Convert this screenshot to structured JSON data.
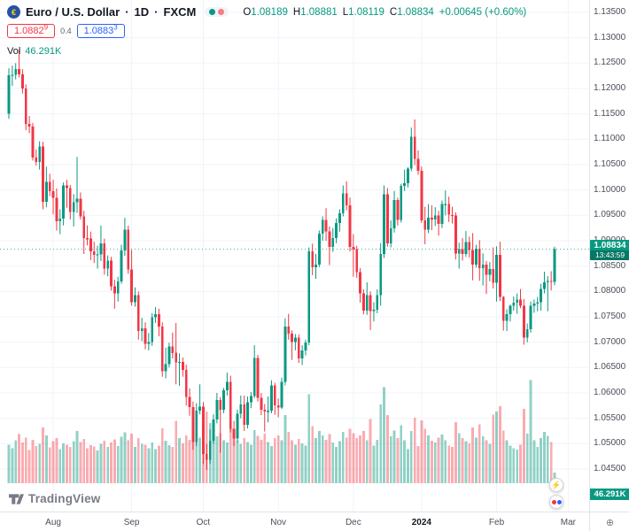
{
  "header": {
    "symbol_title": "Euro / U.S. Dollar",
    "dot": "·",
    "timeframe": "1D",
    "exchange": "FXCM",
    "ohlc": {
      "o_label": "O",
      "o": "1.08189",
      "h_label": "H",
      "h": "1.08881",
      "l_label": "L",
      "l": "1.08119",
      "c_label": "C",
      "c": "1.08834",
      "change": "+0.00645 (+0.60%)"
    },
    "bid": {
      "main": "1.0882",
      "sup": "9"
    },
    "spread": "0.4",
    "ask": {
      "main": "1.0883",
      "sup": "3"
    },
    "vol_label": "Vol",
    "vol_value": "46.291K"
  },
  "price_badge": {
    "price": "1.08834",
    "countdown": "13:43:59"
  },
  "volume_badge": "46.291K",
  "logo": {
    "text": "TradingView"
  },
  "icons": {
    "quick_trade": "⚡",
    "corner": "⊕"
  },
  "colors": {
    "up": "#089981",
    "down": "#f23645",
    "vol_up": "rgba(8,153,129,0.45)",
    "vol_down": "rgba(242,54,69,0.42)",
    "grid": "#f0f3fa",
    "price_line": "#089981",
    "accent_blue": "#2962ff"
  },
  "price_scale": {
    "labels": [
      "1.13500",
      "1.13000",
      "1.12500",
      "1.12000",
      "1.11500",
      "1.11000",
      "1.10500",
      "1.10000",
      "1.09500",
      "1.09000",
      "1.08500",
      "1.08000",
      "1.07500",
      "1.07000",
      "1.06500",
      "1.06000",
      "1.05500",
      "1.05000",
      "1.04500"
    ]
  },
  "time_scale": {
    "ticks": [
      {
        "label": "Aug",
        "i": 13
      },
      {
        "label": "Sep",
        "i": 36
      },
      {
        "label": "Oct",
        "i": 57
      },
      {
        "label": "Nov",
        "i": 79
      },
      {
        "label": "Dec",
        "i": 101
      },
      {
        "label": "2024",
        "i": 121,
        "year": true
      },
      {
        "label": "Feb",
        "i": 143
      },
      {
        "label": "Mar",
        "i": 164
      }
    ]
  },
  "chart_data": {
    "type": "candlestick+volume",
    "symbol": "EURUSD",
    "timeframe": "1D",
    "title": "Euro / U.S. Dollar · 1D · FXCM",
    "y_axis": {
      "min": 1.045,
      "max": 1.135,
      "tick": 0.005
    },
    "price_line": 1.08834,
    "last_volume_k": 46.291,
    "ohlc": [
      [
        1.115,
        1.124,
        1.114,
        1.1226
      ],
      [
        1.1226,
        1.1245,
        1.1205,
        1.1227
      ],
      [
        1.1227,
        1.125,
        1.1218,
        1.1238
      ],
      [
        1.1238,
        1.1276,
        1.1222,
        1.1228
      ],
      [
        1.1228,
        1.1238,
        1.119,
        1.12
      ],
      [
        1.12,
        1.1208,
        1.1118,
        1.113
      ],
      [
        1.113,
        1.1146,
        1.1112,
        1.1125
      ],
      [
        1.1125,
        1.1132,
        1.1058,
        1.1064
      ],
      [
        1.1064,
        1.108,
        1.1048,
        1.1055
      ],
      [
        1.1055,
        1.1096,
        1.104,
        1.1086
      ],
      [
        1.1086,
        1.1095,
        1.0962,
        1.0977
      ],
      [
        1.0977,
        1.1046,
        1.0966,
        1.1016
      ],
      [
        1.1016,
        1.1032,
        1.0988,
        1.0998
      ],
      [
        1.0998,
        1.102,
        1.0952,
        1.0985
      ],
      [
        1.0985,
        1.1003,
        1.092,
        1.0938
      ],
      [
        1.0938,
        1.0962,
        1.0913,
        1.0944
      ],
      [
        1.0944,
        1.1015,
        1.093,
        1.1009
      ],
      [
        1.1009,
        1.102,
        1.0965,
        1.1004
      ],
      [
        1.1004,
        1.101,
        1.0942,
        1.0957
      ],
      [
        1.0957,
        1.0992,
        1.0928,
        1.0976
      ],
      [
        1.0976,
        1.1065,
        1.0955,
        1.0983
      ],
      [
        1.0983,
        1.0995,
        1.0942,
        1.0948
      ],
      [
        1.0948,
        1.0959,
        1.0874,
        1.0905
      ],
      [
        1.0905,
        1.093,
        1.0891,
        1.0904
      ],
      [
        1.0904,
        1.0918,
        1.0862,
        1.0879
      ],
      [
        1.0879,
        1.0898,
        1.0856,
        1.0872
      ],
      [
        1.0872,
        1.089,
        1.0845,
        1.0873
      ],
      [
        1.0873,
        1.093,
        1.086,
        1.0895
      ],
      [
        1.0895,
        1.0904,
        1.0833,
        1.0845
      ],
      [
        1.0845,
        1.0871,
        1.083,
        1.0861
      ],
      [
        1.0861,
        1.0868,
        1.0802,
        1.081
      ],
      [
        1.081,
        1.0823,
        1.0766,
        1.0796
      ],
      [
        1.0796,
        1.0829,
        1.078,
        1.082
      ],
      [
        1.082,
        1.0892,
        1.0815,
        1.0881
      ],
      [
        1.0881,
        1.0945,
        1.087,
        1.0922
      ],
      [
        1.0922,
        1.093,
        1.0835,
        1.0843
      ],
      [
        1.0843,
        1.0882,
        1.0772,
        1.0779
      ],
      [
        1.0779,
        1.0808,
        1.077,
        1.0793
      ],
      [
        1.0793,
        1.08,
        1.0705,
        1.0722
      ],
      [
        1.0722,
        1.0748,
        1.0702,
        1.0727
      ],
      [
        1.0727,
        1.0739,
        1.0686,
        1.0697
      ],
      [
        1.0697,
        1.0718,
        1.0684,
        1.07
      ],
      [
        1.07,
        1.0757,
        1.0693,
        1.0749
      ],
      [
        1.0749,
        1.0769,
        1.0738,
        1.0755
      ],
      [
        1.0755,
        1.0766,
        1.0712,
        1.0731
      ],
      [
        1.0731,
        1.0739,
        1.0632,
        1.0643
      ],
      [
        1.0643,
        1.0689,
        1.0629,
        1.0657
      ],
      [
        1.0657,
        1.0699,
        1.065,
        1.0692
      ],
      [
        1.0692,
        1.0719,
        1.0668,
        1.0679
      ],
      [
        1.0679,
        1.0738,
        1.0617,
        1.066
      ],
      [
        1.066,
        1.0678,
        1.0614,
        1.0661
      ],
      [
        1.0661,
        1.067,
        1.0632,
        1.0645
      ],
      [
        1.0645,
        1.0656,
        1.0575,
        1.0592
      ],
      [
        1.0592,
        1.0609,
        1.0555,
        1.0572
      ],
      [
        1.0572,
        1.0583,
        1.0488,
        1.0503
      ],
      [
        1.0503,
        1.058,
        1.0495,
        1.0565
      ],
      [
        1.0565,
        1.0617,
        1.0558,
        1.0573
      ],
      [
        1.0573,
        1.0582,
        1.046,
        1.048
      ],
      [
        1.048,
        1.0499,
        1.0448,
        1.0468
      ],
      [
        1.0468,
        1.0528,
        1.046,
        1.0506
      ],
      [
        1.0506,
        1.0558,
        1.05,
        1.0548
      ],
      [
        1.0548,
        1.06,
        1.054,
        1.0586
      ],
      [
        1.0586,
        1.0592,
        1.0482,
        1.0567
      ],
      [
        1.0567,
        1.061,
        1.056,
        1.0605
      ],
      [
        1.0605,
        1.064,
        1.0595,
        1.0622
      ],
      [
        1.0622,
        1.0634,
        1.0522,
        1.0529
      ],
      [
        1.0529,
        1.0545,
        1.0495,
        1.051
      ],
      [
        1.051,
        1.0567,
        1.0503,
        1.0559
      ],
      [
        1.0559,
        1.0595,
        1.055,
        1.0577
      ],
      [
        1.0577,
        1.0595,
        1.0525,
        1.0537
      ],
      [
        1.0537,
        1.0593,
        1.053,
        1.0582
      ],
      [
        1.0582,
        1.0602,
        1.057,
        1.0594
      ],
      [
        1.0594,
        1.0694,
        1.059,
        1.0669
      ],
      [
        1.0669,
        1.0675,
        1.0583,
        1.059
      ],
      [
        1.059,
        1.06,
        1.0556,
        1.0567
      ],
      [
        1.0567,
        1.0578,
        1.0524,
        1.0563
      ],
      [
        1.0563,
        1.0593,
        1.0542,
        1.0565
      ],
      [
        1.0565,
        1.0625,
        1.056,
        1.0615
      ],
      [
        1.0615,
        1.062,
        1.0557,
        1.0576
      ],
      [
        1.0576,
        1.0589,
        1.0552,
        1.0571
      ],
      [
        1.0571,
        1.063,
        1.0568,
        1.0622
      ],
      [
        1.0622,
        1.0747,
        1.0615,
        1.0731
      ],
      [
        1.0731,
        1.0756,
        1.0705,
        1.0717
      ],
      [
        1.0717,
        1.0723,
        1.0665,
        1.07
      ],
      [
        1.07,
        1.0716,
        1.0684,
        1.0709
      ],
      [
        1.0709,
        1.0715,
        1.0659,
        1.0668
      ],
      [
        1.0668,
        1.0694,
        1.0655,
        1.0684
      ],
      [
        1.0684,
        1.0705,
        1.0674,
        1.0699
      ],
      [
        1.0699,
        1.0887,
        1.0694,
        1.0879
      ],
      [
        1.0879,
        1.0894,
        1.0832,
        1.0848
      ],
      [
        1.0848,
        1.0874,
        1.0825,
        1.0853
      ],
      [
        1.0853,
        1.092,
        1.0848,
        1.0914
      ],
      [
        1.0914,
        1.0948,
        1.09,
        1.0941
      ],
      [
        1.0941,
        1.0964,
        1.09,
        1.0918
      ],
      [
        1.0918,
        1.0928,
        1.0852,
        1.0888
      ],
      [
        1.0888,
        1.0925,
        1.0878,
        1.0905
      ],
      [
        1.0905,
        1.0944,
        1.0895,
        1.0935
      ],
      [
        1.0935,
        1.0962,
        1.0918,
        1.0954
      ],
      [
        1.0954,
        1.1009,
        1.0948,
        1.0993
      ],
      [
        1.0993,
        1.1017,
        1.096,
        1.097
      ],
      [
        1.097,
        1.0985,
        1.0879,
        1.0888
      ],
      [
        1.0888,
        1.0913,
        1.0829,
        1.0883
      ],
      [
        1.0883,
        1.089,
        1.0827,
        1.0838
      ],
      [
        1.0838,
        1.0846,
        1.0778,
        1.0796
      ],
      [
        1.0796,
        1.0804,
        1.0755,
        1.0762
      ],
      [
        1.0762,
        1.0818,
        1.0754,
        1.0793
      ],
      [
        1.0793,
        1.08,
        1.0724,
        1.0761
      ],
      [
        1.0761,
        1.0779,
        1.0741,
        1.0764
      ],
      [
        1.0764,
        1.0804,
        1.0757,
        1.0793
      ],
      [
        1.0793,
        1.0895,
        1.0772,
        1.0874
      ],
      [
        1.0874,
        1.1009,
        1.0866,
        1.0992
      ],
      [
        1.0992,
        1.1004,
        1.0888,
        1.0895
      ],
      [
        1.0895,
        1.094,
        1.0887,
        1.0924
      ],
      [
        1.0924,
        1.0998,
        1.0916,
        1.098
      ],
      [
        1.098,
        1.0985,
        1.093,
        1.0941
      ],
      [
        1.0941,
        1.1012,
        1.0936,
        1.1008
      ],
      [
        1.1008,
        1.104,
        1.0998,
        1.1013
      ],
      [
        1.1013,
        1.1045,
        1.1005,
        1.1042
      ],
      [
        1.1042,
        1.1123,
        1.1037,
        1.1105
      ],
      [
        1.1105,
        1.1139,
        1.1049,
        1.1061
      ],
      [
        1.1061,
        1.1078,
        1.103,
        1.1038
      ],
      [
        1.1038,
        1.1046,
        1.0935,
        1.094
      ],
      [
        1.094,
        1.0967,
        1.0893,
        1.0922
      ],
      [
        1.0922,
        1.0972,
        1.0915,
        1.0945
      ],
      [
        1.0945,
        1.097,
        1.0921,
        1.0942
      ],
      [
        1.0942,
        1.0966,
        1.0929,
        1.095
      ],
      [
        1.095,
        1.0959,
        1.091,
        1.0933
      ],
      [
        1.0933,
        1.0979,
        1.0925,
        1.0972
      ],
      [
        1.0972,
        1.0999,
        1.095,
        1.0972
      ],
      [
        1.0972,
        1.0987,
        1.0937,
        1.0951
      ],
      [
        1.0951,
        1.0967,
        1.0934,
        1.095
      ],
      [
        1.095,
        1.0956,
        1.0863,
        1.0875
      ],
      [
        1.0875,
        1.0896,
        1.0845,
        1.0883
      ],
      [
        1.0883,
        1.0905,
        1.0861,
        1.0874
      ],
      [
        1.0874,
        1.0919,
        1.0868,
        1.0897
      ],
      [
        1.0897,
        1.0908,
        1.0867,
        1.0882
      ],
      [
        1.0882,
        1.0915,
        1.0822,
        1.0853
      ],
      [
        1.0853,
        1.0892,
        1.0847,
        1.0884
      ],
      [
        1.0884,
        1.0901,
        1.0821,
        1.0846
      ],
      [
        1.0846,
        1.0875,
        1.0812,
        1.0853
      ],
      [
        1.0853,
        1.086,
        1.0795,
        1.0833
      ],
      [
        1.0833,
        1.0858,
        1.082,
        1.0844
      ],
      [
        1.0844,
        1.0887,
        1.0806,
        1.0817
      ],
      [
        1.0817,
        1.0889,
        1.078,
        1.0872
      ],
      [
        1.0872,
        1.0898,
        1.0781,
        1.0789
      ],
      [
        1.0789,
        1.0791,
        1.0723,
        1.0742
      ],
      [
        1.0742,
        1.0765,
        1.0722,
        1.0755
      ],
      [
        1.0755,
        1.0774,
        1.0741,
        1.0772
      ],
      [
        1.0772,
        1.079,
        1.0762,
        1.0778
      ],
      [
        1.0778,
        1.0796,
        1.0756,
        1.0784
      ],
      [
        1.0784,
        1.0805,
        1.0767,
        1.0772
      ],
      [
        1.0772,
        1.0785,
        1.0695,
        1.0709
      ],
      [
        1.0709,
        1.0737,
        1.07,
        1.0726
      ],
      [
        1.0726,
        1.078,
        1.0719,
        1.0772
      ],
      [
        1.0772,
        1.0784,
        1.0758,
        1.0776
      ],
      [
        1.0776,
        1.0789,
        1.0761,
        1.0779
      ],
      [
        1.0779,
        1.0815,
        1.0762,
        1.0805
      ],
      [
        1.0805,
        1.0839,
        1.0796,
        1.0818
      ],
      [
        1.0818,
        1.083,
        1.0761,
        1.0821
      ],
      [
        1.0821,
        1.084,
        1.0802,
        1.0819
      ],
      [
        1.08189,
        1.08881,
        1.08119,
        1.08834
      ]
    ],
    "volume_k": [
      168,
      152,
      187,
      214,
      176,
      198,
      145,
      189,
      162,
      171,
      243,
      208,
      155,
      182,
      196,
      148,
      174,
      168,
      157,
      183,
      226,
      178,
      192,
      151,
      166,
      160,
      143,
      172,
      185,
      158,
      176,
      191,
      162,
      201,
      222,
      187,
      216,
      158,
      196,
      171,
      168,
      152,
      177,
      149,
      163,
      238,
      184,
      166,
      158,
      272,
      196,
      173,
      207,
      188,
      246,
      217,
      198,
      284,
      312,
      262,
      226,
      204,
      218,
      187,
      176,
      242,
      208,
      184,
      172,
      196,
      178,
      168,
      231,
      206,
      188,
      215,
      178,
      162,
      196,
      208,
      186,
      297,
      224,
      186,
      168,
      192,
      174,
      163,
      386,
      248,
      196,
      226,
      207,
      188,
      214,
      176,
      158,
      182,
      224,
      198,
      236,
      218,
      196,
      208,
      226,
      187,
      278,
      164,
      188,
      342,
      418,
      296,
      204,
      228,
      196,
      252,
      186,
      148,
      226,
      284,
      162,
      274,
      236,
      208,
      184,
      176,
      198,
      212,
      187,
      164,
      158,
      266,
      218,
      196,
      182,
      174,
      242,
      198,
      256,
      204,
      186,
      172,
      298,
      312,
      334,
      228,
      186,
      164,
      152,
      147,
      168,
      324,
      216,
      448,
      186,
      158,
      196,
      224,
      206,
      178,
      46.291
    ]
  }
}
